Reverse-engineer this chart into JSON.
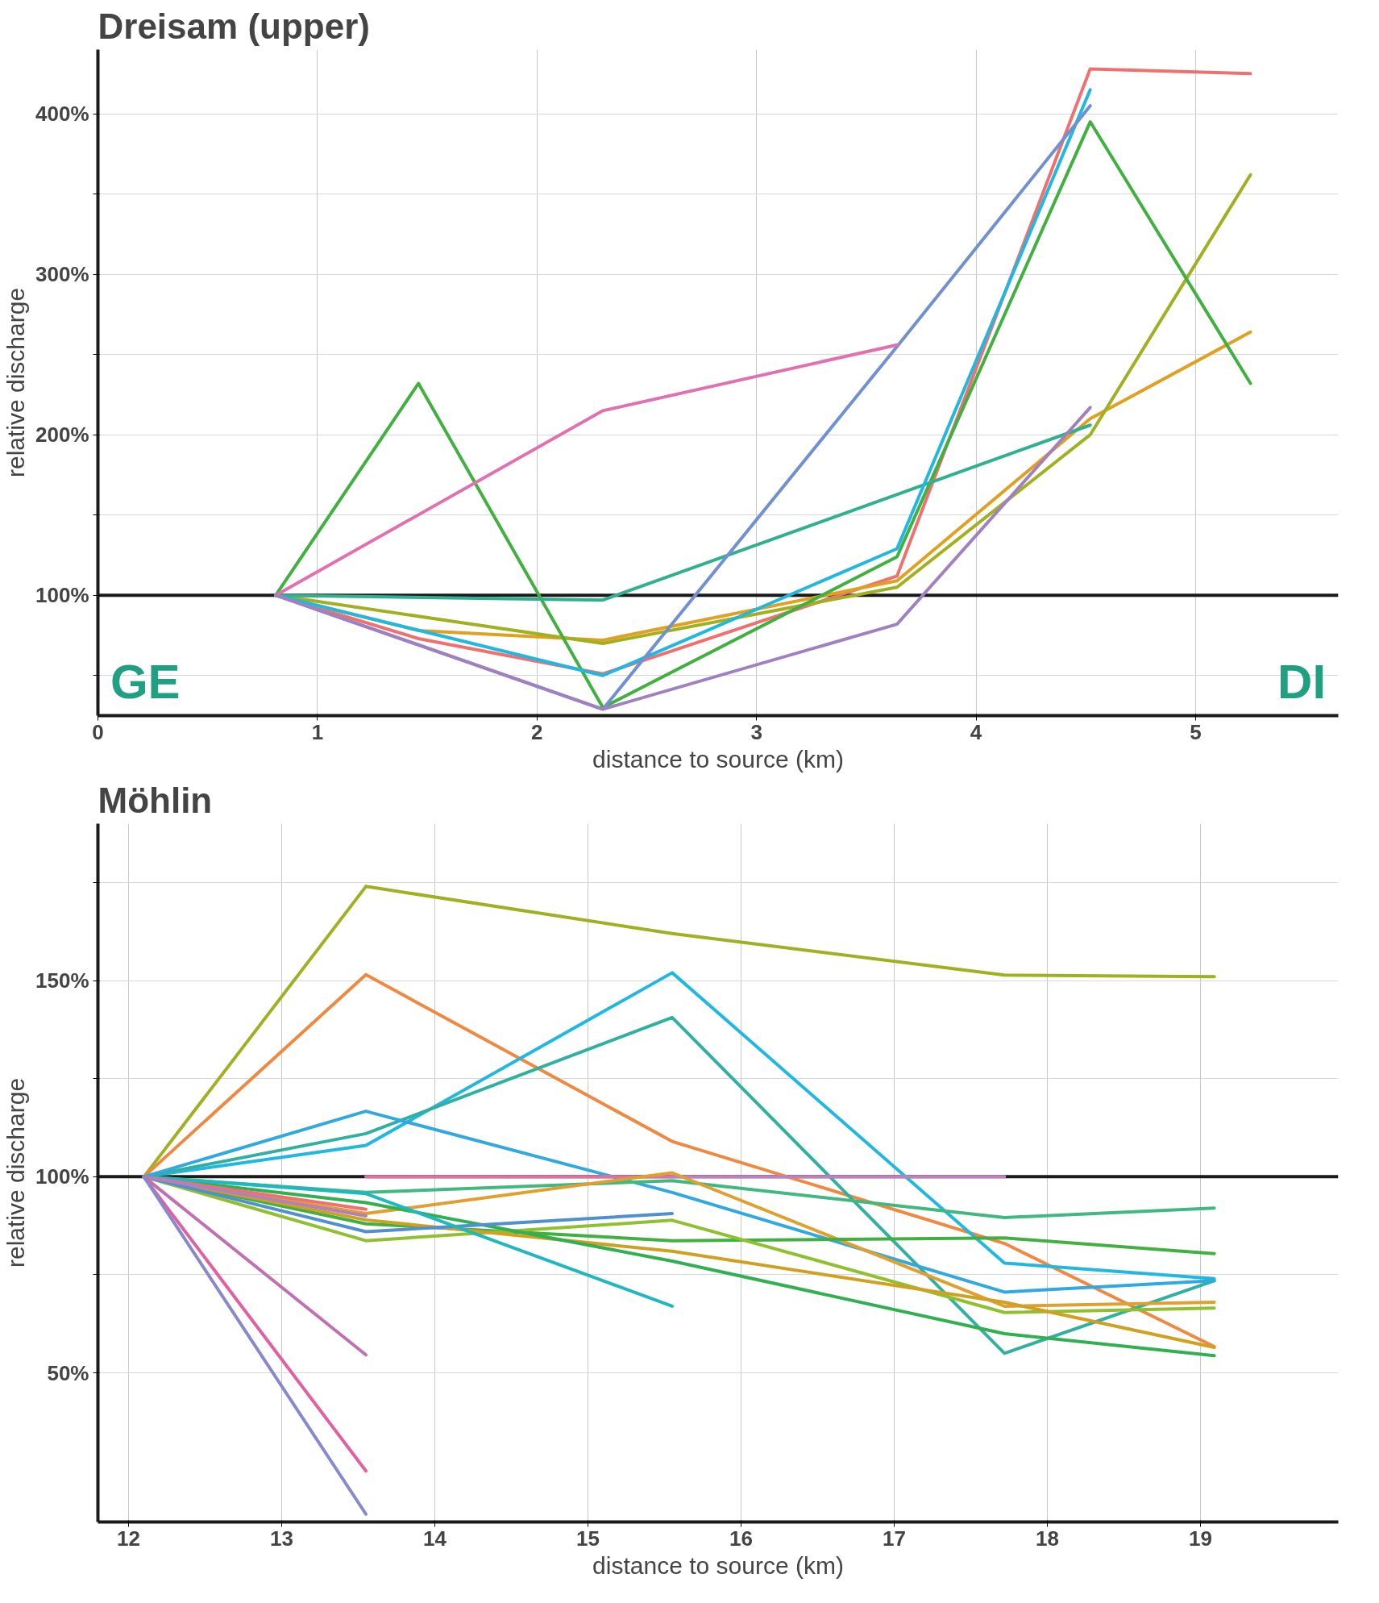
{
  "chart_data": [
    {
      "type": "line",
      "title": "Dreisam (upper)",
      "xlabel": "distance to source (km)",
      "ylabel": "relative discharge",
      "xlim": [
        0,
        5.65
      ],
      "ylim": [
        25,
        440
      ],
      "xticks": [
        0,
        1,
        2,
        3,
        4,
        5
      ],
      "yticks": [
        {
          "value": 50,
          "label": null
        },
        {
          "value": 100,
          "label": "100%"
        },
        {
          "value": 150,
          "label": null
        },
        {
          "value": 200,
          "label": "200%"
        },
        {
          "value": 250,
          "label": null
        },
        {
          "value": 300,
          "label": "300%"
        },
        {
          "value": 350,
          "label": null
        },
        {
          "value": 400,
          "label": "400%"
        }
      ],
      "grid": true,
      "ref_lines": [
        {
          "axis": "y",
          "value": 100,
          "color": "#1a1a1a"
        }
      ],
      "annotations": [
        "GE",
        "DI"
      ],
      "series": [
        {
          "color": "#f07070",
          "x": [
            0.81,
            1.46,
            2.3,
            3.64,
            4.52,
            5.25
          ],
          "values": [
            100,
            73,
            51,
            112,
            428,
            425
          ]
        },
        {
          "color": "#e0a020",
          "x": [
            0.81,
            1.46,
            2.3,
            3.64,
            4.52,
            5.25
          ],
          "values": [
            100,
            78,
            72,
            109,
            210,
            264
          ]
        },
        {
          "color": "#a0b020",
          "x": [
            0.81,
            2.3,
            3.64,
            4.52,
            5.25
          ],
          "values": [
            100,
            70,
            105,
            200,
            362
          ]
        },
        {
          "color": "#40b040",
          "x": [
            0.81,
            1.46,
            2.3,
            3.64,
            4.52,
            5.25
          ],
          "values": [
            100,
            232,
            30,
            124,
            395,
            232
          ]
        },
        {
          "color": "#30b090",
          "x": [
            0.81,
            2.3,
            4.52
          ],
          "values": [
            100,
            97,
            206
          ]
        },
        {
          "color": "#20b8e0",
          "x": [
            0.81,
            2.3,
            3.64,
            4.52
          ],
          "values": [
            100,
            50,
            129,
            415
          ]
        },
        {
          "color": "#7090d0",
          "x": [
            0.81,
            2.3,
            3.64,
            4.52
          ],
          "values": [
            100,
            29,
            255,
            405
          ]
        },
        {
          "color": "#e070b0",
          "x": [
            0.81,
            2.3,
            3.64
          ],
          "values": [
            100,
            215,
            256
          ]
        },
        {
          "color": "#a080c0",
          "x": [
            0.81,
            2.3,
            3.64,
            4.52
          ],
          "values": [
            100,
            29,
            82,
            217
          ]
        }
      ]
    },
    {
      "type": "line",
      "title": "Möhlin",
      "xlabel": "distance to source (km)",
      "ylabel": "relative discharge",
      "xlim": [
        11.8,
        19.9
      ],
      "ylim": [
        12,
        190
      ],
      "xticks": [
        12,
        13,
        14,
        15,
        16,
        17,
        18,
        19
      ],
      "yticks": [
        {
          "value": 50,
          "label": "50%"
        },
        {
          "value": 75,
          "label": null
        },
        {
          "value": 100,
          "label": "100%"
        },
        {
          "value": 125,
          "label": null
        },
        {
          "value": 150,
          "label": "150%"
        },
        {
          "value": 175,
          "label": null
        }
      ],
      "grid": true,
      "ref_lines": [
        {
          "axis": "y",
          "value": 100,
          "color": "#1a1a1a"
        }
      ],
      "series": [
        {
          "color": "#a0b020",
          "x": [
            12.1,
            13.55,
            15.55,
            17.72,
            19.09
          ],
          "values": [
            100,
            174,
            162,
            151.4,
            151
          ]
        },
        {
          "color": "#f08840",
          "x": [
            12.1,
            13.55,
            15.55,
            17.72,
            19.09
          ],
          "values": [
            100,
            151.5,
            109,
            83,
            56.7
          ]
        },
        {
          "color": "#20b8e0",
          "x": [
            12.1,
            13.55,
            15.55,
            17.72,
            19.09
          ],
          "values": [
            100,
            108,
            152,
            78,
            74
          ]
        },
        {
          "color": "#30b0a0",
          "x": [
            12.1,
            13.55,
            15.55,
            17.72,
            19.09
          ],
          "values": [
            100,
            111,
            140.6,
            55,
            73.5
          ]
        },
        {
          "color": "#30a8e0",
          "x": [
            12.1,
            13.55,
            15.55,
            17.72,
            19.09
          ],
          "values": [
            100,
            116.7,
            96,
            70.6,
            73.5
          ]
        },
        {
          "color": "#e070a0",
          "x": [
            13.55,
            15.55
          ],
          "values": [
            100,
            100
          ]
        },
        {
          "color": "#c080c0",
          "x": [
            15.55,
            17.72
          ],
          "values": [
            100,
            100
          ]
        },
        {
          "color": "#40b880",
          "x": [
            12.1,
            13.55,
            15.55,
            17.72,
            19.09
          ],
          "values": [
            100,
            96,
            99,
            89.6,
            92
          ]
        },
        {
          "color": "#e0a030",
          "x": [
            12.1,
            13.55,
            15.55,
            17.72,
            19.09
          ],
          "values": [
            100,
            90.6,
            101,
            67,
            68
          ]
        },
        {
          "color": "#40b040",
          "x": [
            12.1,
            13.55,
            15.55,
            17.72,
            19.09
          ],
          "values": [
            100,
            88,
            83.7,
            84.4,
            80.4
          ]
        },
        {
          "color": "#90c030",
          "x": [
            12.1,
            13.55,
            15.55,
            17.72,
            19.09
          ],
          "values": [
            100,
            83.7,
            88.9,
            65.4,
            66.5
          ]
        },
        {
          "color": "#d0a020",
          "x": [
            12.1,
            13.55,
            15.55,
            17.72,
            19.09
          ],
          "values": [
            100,
            89,
            81,
            68,
            56.5
          ]
        },
        {
          "color": "#30b050",
          "x": [
            12.1,
            13.55,
            15.55,
            17.72,
            19.09
          ],
          "values": [
            100,
            93.4,
            78.5,
            60,
            54.4
          ]
        },
        {
          "color": "#5090d0",
          "x": [
            12.1,
            13.55,
            15.55
          ],
          "values": [
            100,
            86,
            90.6
          ]
        },
        {
          "color": "#20b8c0",
          "x": [
            12.1,
            13.55,
            15.55
          ],
          "values": [
            100,
            95.7,
            67
          ]
        },
        {
          "color": "#f07070",
          "x": [
            12.1,
            13.55
          ],
          "values": [
            100,
            91.7
          ]
        },
        {
          "color": "#b080c0",
          "x": [
            12.1,
            13.55
          ],
          "values": [
            100,
            90
          ]
        },
        {
          "color": "#c070b0",
          "x": [
            12.1,
            13.55
          ],
          "values": [
            100,
            54.6
          ]
        },
        {
          "color": "#e060a0",
          "x": [
            12.1,
            13.55
          ],
          "values": [
            100,
            25
          ]
        },
        {
          "color": "#8888cc",
          "x": [
            12.1,
            13.55
          ],
          "values": [
            100,
            14
          ]
        }
      ]
    }
  ]
}
